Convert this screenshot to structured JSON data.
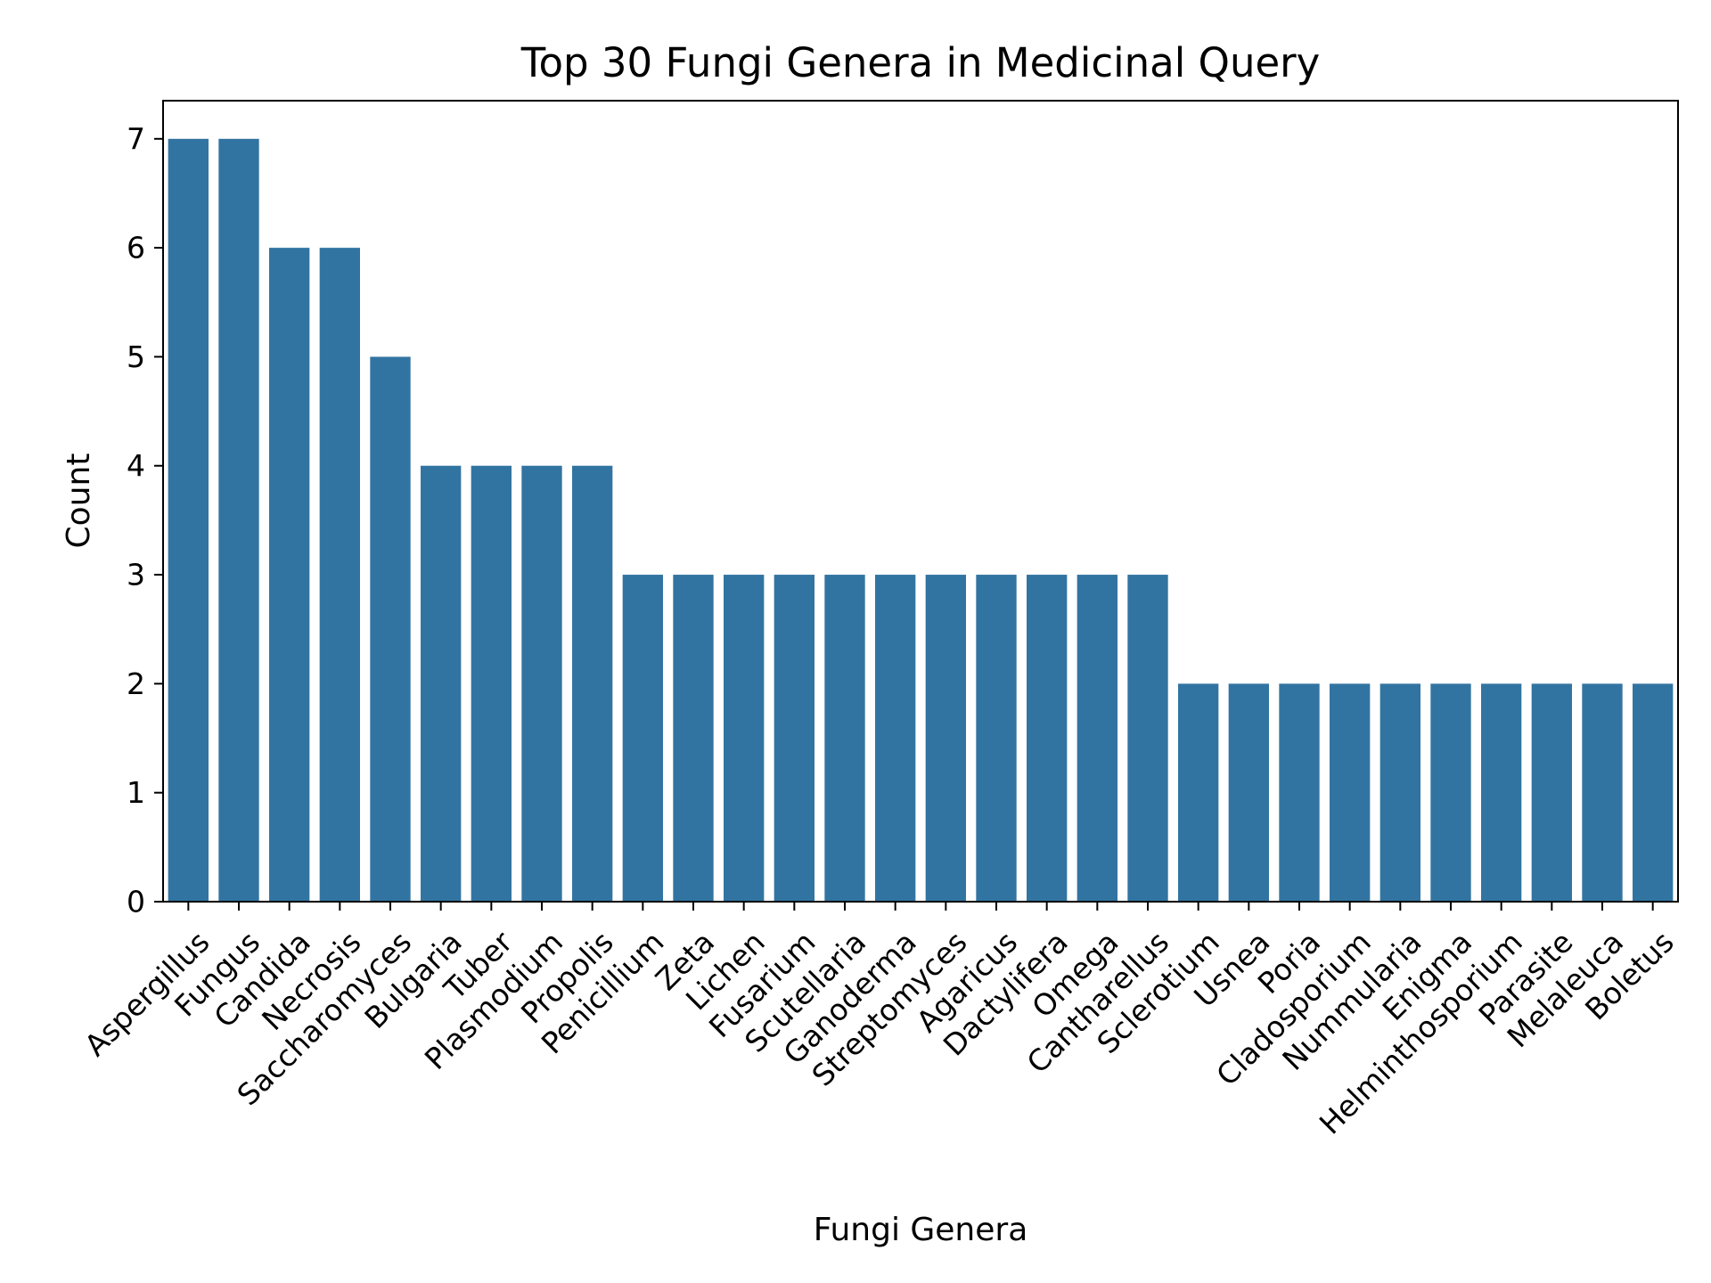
{
  "chart_data": {
    "type": "bar",
    "title": "Top 30 Fungi Genera in Medicinal Query",
    "xlabel": "Fungi Genera",
    "ylabel": "Count",
    "ylim": [
      0,
      7.35
    ],
    "yticks": [
      0,
      1,
      2,
      3,
      4,
      5,
      6,
      7
    ],
    "grid": false,
    "bar_color": "#3274a1",
    "categories": [
      "Aspergillus",
      "Fungus",
      "Candida",
      "Necrosis",
      "Saccharomyces",
      "Bulgaria",
      "Tuber",
      "Plasmodium",
      "Propolis",
      "Penicillium",
      "Zeta",
      "Lichen",
      "Fusarium",
      "Scutellaria",
      "Ganoderma",
      "Streptomyces",
      "Agaricus",
      "Dactylifera",
      "Omega",
      "Cantharellus",
      "Sclerotium",
      "Usnea",
      "Poria",
      "Cladosporium",
      "Nummularia",
      "Enigma",
      "Helminthosporium",
      "Parasite",
      "Melaleuca",
      "Boletus"
    ],
    "values": [
      7,
      7,
      6,
      6,
      5,
      4,
      4,
      4,
      4,
      3,
      3,
      3,
      3,
      3,
      3,
      3,
      3,
      3,
      3,
      3,
      2,
      2,
      2,
      2,
      2,
      2,
      2,
      2,
      2,
      2
    ]
  }
}
